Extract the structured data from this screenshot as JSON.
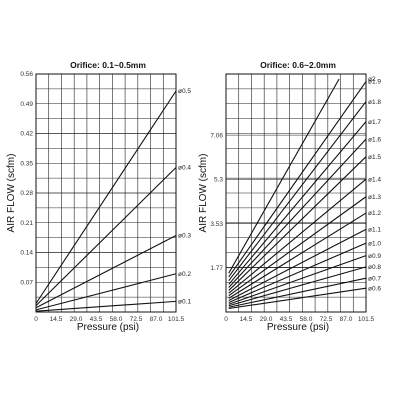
{
  "chart_data": [
    {
      "type": "line",
      "title": "Orifice: 0.1~0.5mm",
      "xlabel": "Pressure (psi)",
      "ylabel": "AIR FLOW (scfm)",
      "xlim": [
        0,
        101.5
      ],
      "ylim": [
        0,
        0.56
      ],
      "x_ticks": [
        "0",
        "14.5",
        "29.0",
        "43.5",
        "58.0",
        "72.5",
        "87.0",
        "101.5"
      ],
      "y_ticks": [
        "0.07",
        "0.14",
        "0.21",
        "0.28",
        "0.35",
        "0.42",
        "0.49",
        "0.56"
      ],
      "y_tick_values": [
        0.07,
        0.14,
        0.21,
        0.28,
        0.35,
        0.42,
        0.49,
        0.56
      ],
      "grid": true,
      "series": [
        {
          "name": "ø0.5",
          "x": [
            0,
            101.5
          ],
          "y": [
            0.02,
            0.52
          ]
        },
        {
          "name": "ø0.4",
          "x": [
            0,
            101.5
          ],
          "y": [
            0.015,
            0.34
          ]
        },
        {
          "name": "ø0.3",
          "x": [
            0,
            101.5
          ],
          "y": [
            0.01,
            0.18
          ]
        },
        {
          "name": "ø0.2",
          "x": [
            0,
            101.5
          ],
          "y": [
            0.005,
            0.09
          ]
        },
        {
          "name": "ø0.1",
          "x": [
            0,
            101.5
          ],
          "y": [
            0.002,
            0.025
          ]
        }
      ]
    },
    {
      "type": "line",
      "title": "Orifice: 0.6~2.0mm",
      "xlabel": "Pressure (psi)",
      "ylabel": "AIR FLOW (scfm)",
      "xlim": [
        0,
        101.5
      ],
      "ylim": [
        0,
        9.5
      ],
      "x_ticks": [
        "0",
        "14.5",
        "29.0",
        "43.5",
        "58.0",
        "72.5",
        "87.0",
        "101.5"
      ],
      "y_ticks": [
        "1.77",
        "3.53",
        "5.3",
        "7.06"
      ],
      "y_tick_values": [
        1.77,
        3.53,
        5.3,
        7.06
      ],
      "grid": true,
      "series": [
        {
          "name": "ø2",
          "x": [
            2,
            82
          ],
          "y": [
            1.55,
            9.3
          ]
        },
        {
          "name": "ø1.9",
          "x": [
            2,
            101.5
          ],
          "y": [
            1.4,
            9.2
          ]
        },
        {
          "name": "ø1.8",
          "x": [
            2,
            101.5
          ],
          "y": [
            1.25,
            8.4
          ]
        },
        {
          "name": "ø1.7",
          "x": [
            2,
            101.5
          ],
          "y": [
            1.1,
            7.6
          ]
        },
        {
          "name": "ø1.6",
          "x": [
            2,
            101.5
          ],
          "y": [
            0.98,
            6.9
          ]
        },
        {
          "name": "ø1.5",
          "x": [
            2,
            101.5
          ],
          "y": [
            0.86,
            6.2
          ]
        },
        {
          "name": "ø1.4",
          "x": [
            2,
            101.5
          ],
          "y": [
            0.75,
            5.3
          ]
        },
        {
          "name": "ø1.3",
          "x": [
            2,
            101.5
          ],
          "y": [
            0.65,
            4.6
          ]
        },
        {
          "name": "ø1.2",
          "x": [
            2,
            101.5
          ],
          "y": [
            0.55,
            3.95
          ]
        },
        {
          "name": "ø1.1",
          "x": [
            2,
            101.5
          ],
          "y": [
            0.46,
            3.3
          ]
        },
        {
          "name": "ø1.0",
          "x": [
            2,
            101.5
          ],
          "y": [
            0.38,
            2.75
          ]
        },
        {
          "name": "ø0.9",
          "x": [
            2,
            101.5
          ],
          "y": [
            0.31,
            2.25
          ]
        },
        {
          "name": "ø0.8",
          "x": [
            2,
            101.5
          ],
          "y": [
            0.25,
            1.8
          ]
        },
        {
          "name": "ø0.7",
          "x": [
            2,
            101.5
          ],
          "y": [
            0.19,
            1.35
          ]
        },
        {
          "name": "ø0.6",
          "x": [
            2,
            101.5
          ],
          "y": [
            0.14,
            0.95
          ]
        }
      ]
    }
  ]
}
